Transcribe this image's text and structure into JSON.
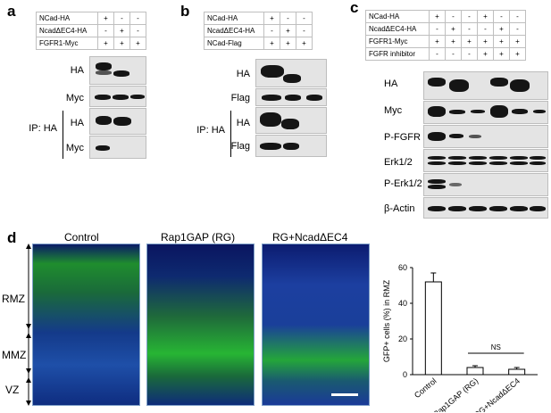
{
  "panels": {
    "a": {
      "label": "a",
      "rows": [
        {
          "name": "NCad-HA",
          "vals": [
            "+",
            "-",
            "-"
          ]
        },
        {
          "name": "NcadΔEC4-HA",
          "vals": [
            "-",
            "+",
            "-"
          ]
        },
        {
          "name": "FGFR1-Myc",
          "vals": [
            "+",
            "+",
            "+"
          ]
        }
      ],
      "blots": [
        "HA",
        "Myc",
        "HA",
        "Myc"
      ],
      "ip_label": "IP: HA"
    },
    "b": {
      "label": "b",
      "rows": [
        {
          "name": "NCad-HA",
          "vals": [
            "+",
            "-",
            "-"
          ]
        },
        {
          "name": "NcadΔEC4-HA",
          "vals": [
            "-",
            "+",
            "-"
          ]
        },
        {
          "name": "NCad-Flag",
          "vals": [
            "+",
            "+",
            "+"
          ]
        }
      ],
      "blots": [
        "HA",
        "Flag",
        "HA",
        "Flag"
      ],
      "ip_label": "IP: HA"
    },
    "c": {
      "label": "c",
      "rows": [
        {
          "name": "NCad-HA",
          "vals": [
            "+",
            "-",
            "-",
            "+",
            "-",
            "-"
          ]
        },
        {
          "name": "NcadΔEC4-HA",
          "vals": [
            "-",
            "+",
            "-",
            "-",
            "+",
            "-"
          ]
        },
        {
          "name": "FGFR1-Myc",
          "vals": [
            "+",
            "+",
            "+",
            "+",
            "+",
            "+"
          ]
        },
        {
          "name": "FGFR inhibitor",
          "vals": [
            "-",
            "-",
            "-",
            "+",
            "+",
            "+"
          ]
        }
      ],
      "blots": [
        "HA",
        "Myc",
        "P-FGFR",
        "Erk1/2",
        "P-Erk1/2",
        "β-Actin"
      ]
    },
    "d": {
      "label": "d",
      "images": [
        "Control",
        "Rap1GAP (RG)",
        "RG+NcadΔEC4"
      ],
      "zones": [
        "RMZ",
        "MMZ",
        "VZ"
      ]
    }
  },
  "chart_data": {
    "type": "bar",
    "categories": [
      "Control",
      "Rap1GAP (RG)",
      "RG+NcadΔEC4"
    ],
    "values": [
      52,
      4,
      3
    ],
    "errors": [
      5,
      1,
      1
    ],
    "ylabel": "GFP+ cells (%) in RMZ",
    "ylim": [
      0,
      60
    ],
    "yticks": [
      "0",
      "20",
      "40",
      "60"
    ],
    "annotation": "NS"
  }
}
